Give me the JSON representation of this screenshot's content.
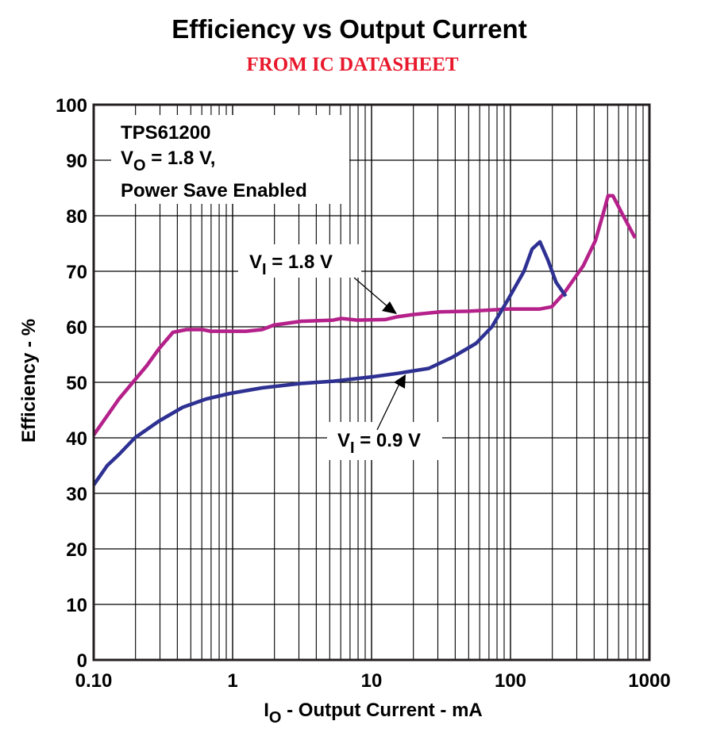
{
  "chart_data": {
    "type": "line",
    "title": "Efficiency vs Output Current",
    "subtitle": "FROM IC DATASHEET",
    "xlabel_main": "I",
    "xlabel_sub": "O",
    "xlabel_rest": " - Output Current - mA",
    "ylabel": "Efficiency - %",
    "x_scale": "log",
    "xlim": [
      0.1,
      1000
    ],
    "ylim": [
      0,
      100
    ],
    "grid": true,
    "x_ticks": [
      {
        "v": 0.1,
        "label": "0.10"
      },
      {
        "v": 1,
        "label": "1"
      },
      {
        "v": 10,
        "label": "10"
      },
      {
        "v": 100,
        "label": "100"
      },
      {
        "v": 1000,
        "label": "1000"
      }
    ],
    "y_ticks": [
      0,
      10,
      20,
      30,
      40,
      50,
      60,
      70,
      80,
      90,
      100
    ],
    "note": {
      "line1": "TPS61200",
      "line2_main": "V",
      "line2_sub": "O",
      "line2_rest": " = 1.8 V,",
      "line3": "Power Save Enabled"
    },
    "series": [
      {
        "name_main": "V",
        "name_sub": "I",
        "name_rest": " = 1.8 V",
        "color": "#b5218a",
        "x": [
          0.1,
          0.152,
          0.241,
          0.294,
          0.372,
          0.466,
          0.606,
          0.69,
          1.25,
          1.63,
          1.98,
          3.13,
          5.3,
          6.05,
          7.9,
          12.5,
          15.3,
          19.9,
          31.6,
          49.9,
          96.5,
          163,
          198,
          242,
          334,
          408,
          466,
          504,
          546,
          648,
          789
        ],
        "y": [
          40.5,
          47,
          53,
          56,
          59,
          59.5,
          59.5,
          59.2,
          59.2,
          59.5,
          60.3,
          61,
          61.2,
          61.5,
          61.2,
          61.3,
          61.8,
          62.2,
          62.7,
          62.8,
          63.2,
          63.2,
          63.6,
          66,
          71,
          75.5,
          80.5,
          83.6,
          83.6,
          80,
          76
        ]
      },
      {
        "name_main": "V",
        "name_sub": "I",
        "name_rest": " = 0.9 V",
        "color": "#2e3192",
        "x": [
          0.1,
          0.125,
          0.152,
          0.198,
          0.294,
          0.437,
          0.646,
          0.96,
          1.63,
          3.13,
          5.3,
          10.2,
          15.3,
          25.8,
          38.1,
          56.4,
          73.5,
          96.5,
          125,
          143,
          163,
          186,
          213,
          250
        ],
        "y": [
          31.5,
          35,
          37,
          40,
          43,
          45.5,
          47,
          48,
          49,
          49.8,
          50.2,
          51,
          51.6,
          52.5,
          54.5,
          57,
          60,
          65,
          70,
          74,
          75.3,
          72,
          68,
          65.5
        ]
      }
    ]
  }
}
